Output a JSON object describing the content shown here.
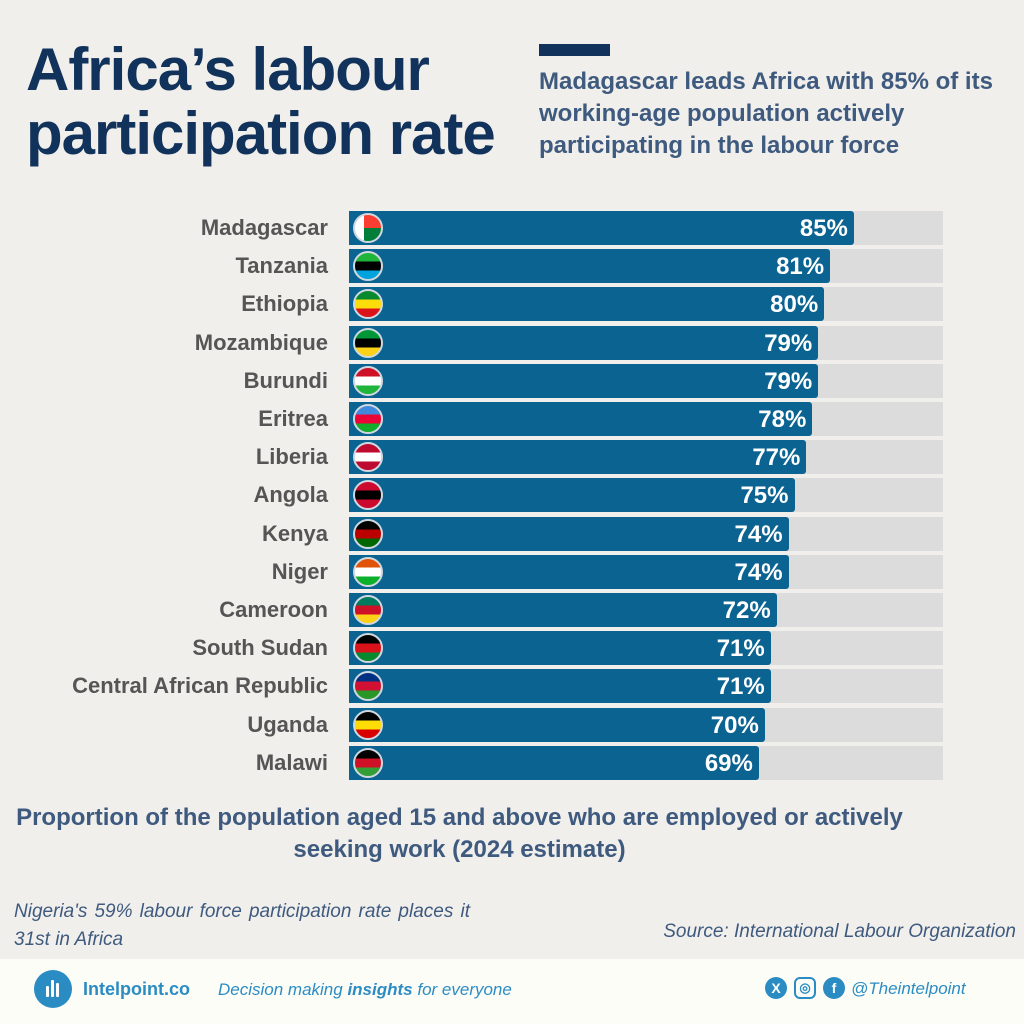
{
  "header": {
    "title_line1": "Africa’s labour",
    "title_line2": "participation rate",
    "subtitle": "Madagascar leads Africa with 85% of its working-age population actively participating in the labour force"
  },
  "chart_data": {
    "type": "bar",
    "orientation": "horizontal",
    "categories": [
      "Madagascar",
      "Tanzania",
      "Ethiopia",
      "Mozambique",
      "Burundi",
      "Eritrea",
      "Liberia",
      "Angola",
      "Kenya",
      "Niger",
      "Cameroon",
      "South Sudan",
      "Central African Republic",
      "Uganda",
      "Malawi"
    ],
    "values": [
      85,
      81,
      80,
      79,
      79,
      78,
      77,
      75,
      74,
      74,
      72,
      71,
      71,
      70,
      69
    ],
    "value_labels": [
      "85%",
      "81%",
      "80%",
      "79%",
      "79%",
      "78%",
      "77%",
      "75%",
      "74%",
      "74%",
      "72%",
      "71%",
      "71%",
      "70%",
      "69%"
    ],
    "xlim": [
      0,
      100
    ],
    "bar_color": "#0b6391",
    "track_color": "#dcdcdc",
    "caption": "Proportion of the population aged 15 and above who are employed or actively seeking work (2024 estimate)",
    "flag_colors": [
      [
        "#ffffff",
        "#fc3d32",
        "#007e3a"
      ],
      [
        "#1eb53a",
        "#000000",
        "#00a3dd"
      ],
      [
        "#078930",
        "#fcdd09",
        "#da121a"
      ],
      [
        "#009739",
        "#000000",
        "#fcd116"
      ],
      [
        "#ce1126",
        "#ffffff",
        "#1eb53a"
      ],
      [
        "#4189dd",
        "#ea0437",
        "#12ad2b"
      ],
      [
        "#bf0a30",
        "#ffffff",
        "#bf0a30"
      ],
      [
        "#cc092f",
        "#000000",
        "#cc092f"
      ],
      [
        "#000000",
        "#bb0000",
        "#006600"
      ],
      [
        "#e05206",
        "#ffffff",
        "#0db02b"
      ],
      [
        "#007a5e",
        "#ce1126",
        "#fcd116"
      ],
      [
        "#000000",
        "#da121a",
        "#078930"
      ],
      [
        "#003082",
        "#d21034",
        "#289728"
      ],
      [
        "#000000",
        "#fcdc04",
        "#d90000"
      ],
      [
        "#000000",
        "#ce1126",
        "#339e35"
      ]
    ]
  },
  "note": "Nigeria's 59% labour force participation rate places it 31st in Africa",
  "source": "Source: International Labour Organization",
  "footer": {
    "brand": "Intelpoint.co",
    "tagline_pre": "Decision making ",
    "tagline_bold": "insights",
    "tagline_post": " for everyone",
    "handle": "@Theintelpoint",
    "x_glyph": "X",
    "ig_glyph": "◎",
    "fb_glyph": "f",
    "accent_color": "#2b8cc4"
  }
}
